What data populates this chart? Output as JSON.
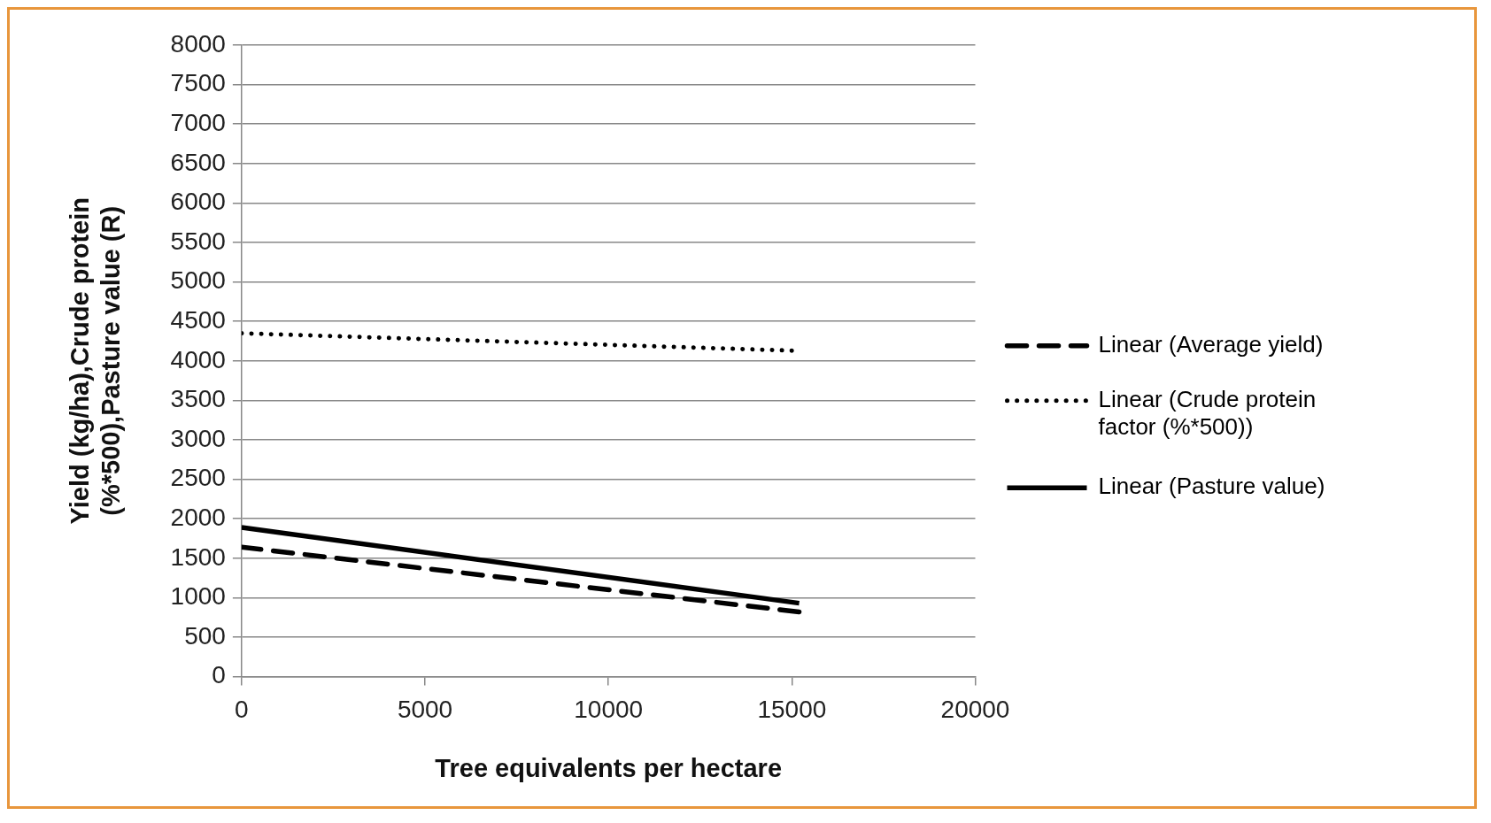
{
  "chart_data": {
    "type": "line",
    "xlabel": "Tree equivalents per hectare",
    "ylabel": "Yield (kg/ha),Crude protein (%*500),Pasture value (R)",
    "xlim": [
      0,
      20000
    ],
    "xticks": [
      0,
      5000,
      10000,
      15000,
      20000
    ],
    "ylim": [
      0,
      8000
    ],
    "yticks": [
      0,
      500,
      1000,
      1500,
      2000,
      2500,
      3000,
      3500,
      4000,
      4500,
      5000,
      5500,
      6000,
      6500,
      7000,
      7500,
      8000
    ],
    "grid": "y",
    "legend": "right",
    "marker": "none",
    "series": [
      {
        "name": "Linear (Average yield)",
        "color": "#000000",
        "line_style": "dashed",
        "x": [
          0,
          15200
        ],
        "values": [
          1640,
          820
        ]
      },
      {
        "name": "Linear (Crude protein factor (%*500))",
        "color": "#000000",
        "line_style": "dotted",
        "x": [
          0,
          15000
        ],
        "values": [
          4350,
          4130
        ]
      },
      {
        "name": "Linear (Pasture value)",
        "color": "#000000",
        "line_style": "solid",
        "x": [
          0,
          15200
        ],
        "values": [
          1890,
          930
        ]
      }
    ]
  }
}
